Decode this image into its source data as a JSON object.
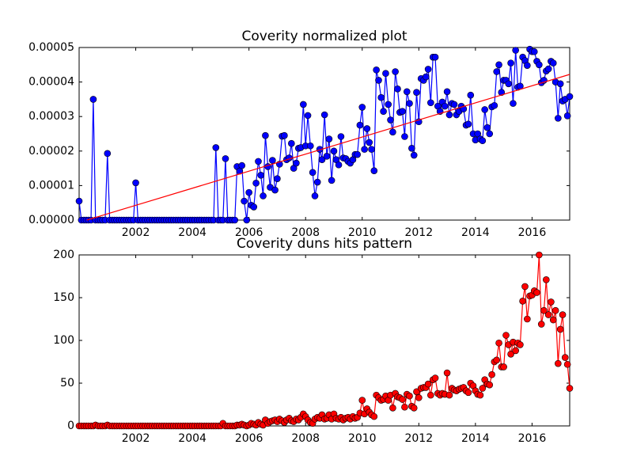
{
  "chart_data": [
    {
      "type": "line",
      "title": "Coverity normalized plot",
      "xlim": [
        2000,
        2017.33
      ],
      "xticks": [
        2002,
        2004,
        2006,
        2008,
        2010,
        2012,
        2014,
        2016
      ],
      "ylim": [
        0,
        5e-05
      ],
      "yticks": [
        {
          "value": 0,
          "label": "0.00000"
        },
        {
          "value": 1e-05,
          "label": "0.00001"
        },
        {
          "value": 2e-05,
          "label": "0.00002"
        },
        {
          "value": 3e-05,
          "label": "0.00003"
        },
        {
          "value": 4e-05,
          "label": "0.00004"
        },
        {
          "value": 5e-05,
          "label": "0.00005"
        }
      ],
      "series": [
        {
          "color": "#0000ff",
          "marker": true,
          "x": [
            2000,
            2000.08,
            2000.17,
            2000.25,
            2000.33,
            2000.42,
            2000.5,
            2000.58,
            2000.67,
            2000.75,
            2000.83,
            2000.92,
            2001,
            2001.08,
            2001.17,
            2001.25,
            2001.33,
            2001.42,
            2001.5,
            2001.58,
            2001.67,
            2001.75,
            2001.83,
            2001.92,
            2002,
            2002.08,
            2002.17,
            2002.25,
            2002.33,
            2002.42,
            2002.5,
            2002.58,
            2002.67,
            2002.75,
            2002.83,
            2002.92,
            2003,
            2003.08,
            2003.17,
            2003.25,
            2003.33,
            2003.42,
            2003.5,
            2003.58,
            2003.67,
            2003.75,
            2003.83,
            2003.92,
            2004,
            2004.08,
            2004.17,
            2004.25,
            2004.33,
            2004.42,
            2004.5,
            2004.58,
            2004.67,
            2004.75,
            2004.83,
            2004.92,
            2005,
            2005.08,
            2005.17,
            2005.25,
            2005.33,
            2005.42,
            2005.5,
            2005.58,
            2005.67,
            2005.75,
            2005.83,
            2005.92,
            2006,
            2006.08,
            2006.17,
            2006.25,
            2006.33,
            2006.42,
            2006.5,
            2006.58,
            2006.67,
            2006.75,
            2006.83,
            2006.92,
            2007,
            2007.08,
            2007.17,
            2007.25,
            2007.33,
            2007.42,
            2007.5,
            2007.58,
            2007.67,
            2007.75,
            2007.83,
            2007.92,
            2008,
            2008.08,
            2008.17,
            2008.25,
            2008.33,
            2008.42,
            2008.5,
            2008.58,
            2008.67,
            2008.75,
            2008.83,
            2008.92,
            2009,
            2009.08,
            2009.17,
            2009.25,
            2009.33,
            2009.42,
            2009.5,
            2009.58,
            2009.67,
            2009.75,
            2009.83,
            2009.92,
            2010,
            2010.08,
            2010.17,
            2010.25,
            2010.33,
            2010.42,
            2010.5,
            2010.58,
            2010.67,
            2010.75,
            2010.83,
            2010.92,
            2011,
            2011.08,
            2011.17,
            2011.25,
            2011.33,
            2011.42,
            2011.5,
            2011.58,
            2011.67,
            2011.75,
            2011.83,
            2011.92,
            2012,
            2012.08,
            2012.17,
            2012.25,
            2012.33,
            2012.42,
            2012.5,
            2012.58,
            2012.67,
            2012.75,
            2012.83,
            2012.92,
            2013,
            2013.08,
            2013.17,
            2013.25,
            2013.33,
            2013.42,
            2013.5,
            2013.58,
            2013.67,
            2013.75,
            2013.83,
            2013.92,
            2014,
            2014.08,
            2014.17,
            2014.25,
            2014.33,
            2014.42,
            2014.5,
            2014.58,
            2014.67,
            2014.75,
            2014.83,
            2014.92,
            2015,
            2015.08,
            2015.17,
            2015.25,
            2015.33,
            2015.42,
            2015.5,
            2015.58,
            2015.67,
            2015.75,
            2015.83,
            2015.92,
            2016,
            2016.08,
            2016.17,
            2016.25,
            2016.33,
            2016.42,
            2016.5,
            2016.58,
            2016.67,
            2016.75,
            2016.83,
            2016.92,
            2017,
            2017.08,
            2017.17,
            2017.25,
            2017.33
          ],
          "values": [
            5.5e-06,
            0,
            0,
            0,
            0,
            0,
            3.5e-05,
            0,
            0,
            0,
            0,
            0,
            1.93e-05,
            0,
            0,
            0,
            0,
            0,
            0,
            0,
            0,
            0,
            0,
            0,
            1.08e-05,
            0,
            0,
            0,
            0,
            0,
            0,
            0,
            0,
            0,
            0,
            0,
            0,
            0,
            0,
            0,
            0,
            0,
            0,
            0,
            0,
            0,
            0,
            0,
            0,
            0,
            0,
            0,
            0,
            0,
            0,
            0,
            0,
            0,
            2.1e-05,
            0,
            0,
            0,
            1.78e-05,
            0,
            0,
            0,
            0,
            1.55e-05,
            1.42e-05,
            1.58e-05,
            5.5e-06,
            0,
            8e-06,
            4.3e-06,
            3.8e-06,
            1.07e-05,
            1.7e-05,
            1.3e-05,
            7e-06,
            2.45e-05,
            1.55e-05,
            9.5e-06,
            1.73e-05,
            8.7e-06,
            1.2e-05,
            1.62e-05,
            2.43e-05,
            2.45e-05,
            1.75e-05,
            1.8e-05,
            2.22e-05,
            1.5e-05,
            1.65e-05,
            2.08e-05,
            2.1e-05,
            3.35e-05,
            2.15e-05,
            3.03e-05,
            2.15e-05,
            1.38e-05,
            7e-06,
            1.1e-05,
            2.05e-05,
            1.75e-05,
            3.05e-05,
            1.85e-05,
            2.35e-05,
            1.15e-05,
            2e-05,
            1.75e-05,
            1.6e-05,
            2.42e-05,
            1.8e-05,
            1.78e-05,
            1.7e-05,
            1.65e-05,
            1.75e-05,
            1.9e-05,
            1.9e-05,
            2.75e-05,
            3.27e-05,
            2.05e-05,
            2.65e-05,
            2.25e-05,
            2.05e-05,
            1.43e-05,
            4.35e-05,
            4.05e-05,
            3.55e-05,
            3.15e-05,
            4.25e-05,
            3.35e-05,
            2.9e-05,
            2.55e-05,
            4.3e-05,
            3.8e-05,
            3.12e-05,
            3.15e-05,
            2.42e-05,
            3.72e-05,
            3.38e-05,
            2.08e-05,
            1.88e-05,
            3.7e-05,
            2.85e-05,
            4.1e-05,
            4.05e-05,
            4.15e-05,
            4.37e-05,
            3.4e-05,
            4.72e-05,
            4.72e-05,
            3.3e-05,
            3.15e-05,
            3.42e-05,
            3.3e-05,
            3.72e-05,
            3.05e-05,
            3.38e-05,
            3.35e-05,
            3.05e-05,
            3.15e-05,
            3.3e-05,
            3.22e-05,
            2.75e-05,
            2.78e-05,
            3.62e-05,
            2.5e-05,
            2.32e-05,
            2.5e-05,
            2.35e-05,
            2.3e-05,
            3.2e-05,
            2.68e-05,
            2.5e-05,
            3.28e-05,
            3.32e-05,
            4.3e-05,
            4.5e-05,
            3.7e-05,
            4.05e-05,
            4.05e-05,
            3.95e-05,
            4.55e-05,
            3.38e-05,
            4.92e-05,
            3.85e-05,
            3.88e-05,
            4.72e-05,
            4.62e-05,
            4.48e-05,
            4.95e-05,
            4.88e-05,
            4.88e-05,
            4.6e-05,
            4.5e-05,
            3.98e-05,
            4.05e-05,
            4.32e-05,
            4.38e-05,
            4.6e-05,
            4.55e-05,
            4e-05,
            2.95e-05,
            3.95e-05,
            3.45e-05,
            3.5e-05,
            3.02e-05,
            3.58e-05
          ]
        },
        {
          "color": "#ff0000",
          "marker": false,
          "x": [
            2000.27,
            2017.33
          ],
          "values": [
            0,
            4.22e-05
          ]
        }
      ]
    },
    {
      "type": "line",
      "title": "Coverity duns hits pattern",
      "xlim": [
        2000,
        2017.33
      ],
      "xticks": [
        2002,
        2004,
        2006,
        2008,
        2010,
        2012,
        2014,
        2016
      ],
      "ylim": [
        0,
        200
      ],
      "yticks": [
        0,
        50,
        100,
        150,
        200
      ],
      "series": [
        {
          "color": "#ff0000",
          "marker": true,
          "x": [
            2000,
            2000.08,
            2000.17,
            2000.25,
            2000.33,
            2000.42,
            2000.5,
            2000.58,
            2000.67,
            2000.75,
            2000.83,
            2000.92,
            2001,
            2001.08,
            2001.17,
            2001.25,
            2001.33,
            2001.42,
            2001.5,
            2001.58,
            2001.67,
            2001.75,
            2001.83,
            2001.92,
            2002,
            2002.08,
            2002.17,
            2002.25,
            2002.33,
            2002.42,
            2002.5,
            2002.58,
            2002.67,
            2002.75,
            2002.83,
            2002.92,
            2003,
            2003.08,
            2003.17,
            2003.25,
            2003.33,
            2003.42,
            2003.5,
            2003.58,
            2003.67,
            2003.75,
            2003.83,
            2003.92,
            2004,
            2004.08,
            2004.17,
            2004.25,
            2004.33,
            2004.42,
            2004.5,
            2004.58,
            2004.67,
            2004.75,
            2004.83,
            2004.92,
            2005,
            2005.08,
            2005.17,
            2005.25,
            2005.33,
            2005.42,
            2005.5,
            2005.58,
            2005.67,
            2005.75,
            2005.83,
            2005.92,
            2006,
            2006.08,
            2006.17,
            2006.25,
            2006.33,
            2006.42,
            2006.5,
            2006.58,
            2006.67,
            2006.75,
            2006.83,
            2006.92,
            2007,
            2007.08,
            2007.17,
            2007.25,
            2007.33,
            2007.42,
            2007.5,
            2007.58,
            2007.67,
            2007.75,
            2007.83,
            2007.92,
            2008,
            2008.08,
            2008.17,
            2008.25,
            2008.33,
            2008.42,
            2008.5,
            2008.58,
            2008.67,
            2008.75,
            2008.83,
            2008.92,
            2009,
            2009.08,
            2009.17,
            2009.25,
            2009.33,
            2009.42,
            2009.5,
            2009.58,
            2009.67,
            2009.75,
            2009.83,
            2009.92,
            2010,
            2010.08,
            2010.17,
            2010.25,
            2010.33,
            2010.42,
            2010.5,
            2010.58,
            2010.67,
            2010.75,
            2010.83,
            2010.92,
            2011,
            2011.08,
            2011.17,
            2011.25,
            2011.33,
            2011.42,
            2011.5,
            2011.58,
            2011.67,
            2011.75,
            2011.83,
            2011.92,
            2012,
            2012.08,
            2012.17,
            2012.25,
            2012.33,
            2012.42,
            2012.5,
            2012.58,
            2012.67,
            2012.75,
            2012.83,
            2012.92,
            2013,
            2013.08,
            2013.17,
            2013.25,
            2013.33,
            2013.42,
            2013.5,
            2013.58,
            2013.67,
            2013.75,
            2013.83,
            2013.92,
            2014,
            2014.08,
            2014.17,
            2014.25,
            2014.33,
            2014.42,
            2014.5,
            2014.58,
            2014.67,
            2014.75,
            2014.83,
            2014.92,
            2015,
            2015.08,
            2015.17,
            2015.25,
            2015.33,
            2015.42,
            2015.5,
            2015.58,
            2015.67,
            2015.75,
            2015.83,
            2015.92,
            2016,
            2016.08,
            2016.17,
            2016.25,
            2016.33,
            2016.42,
            2016.5,
            2016.58,
            2016.67,
            2016.75,
            2016.83,
            2016.92,
            2017,
            2017.08,
            2017.17,
            2017.25,
            2017.33
          ],
          "values": [
            0,
            0,
            0,
            0,
            0,
            0,
            0,
            1,
            0,
            0,
            0,
            0,
            1,
            0,
            0,
            0,
            0,
            0,
            0,
            0,
            0,
            0,
            0,
            0,
            0,
            0,
            0,
            0,
            0,
            0,
            0,
            0,
            0,
            0,
            0,
            0,
            0,
            0,
            0,
            0,
            0,
            0,
            0,
            0,
            0,
            0,
            0,
            0,
            0,
            0,
            0,
            0,
            0,
            0,
            0,
            0,
            0,
            0,
            0,
            0,
            0,
            3,
            0,
            0,
            0,
            0,
            0,
            1,
            1,
            2,
            1,
            0,
            1,
            3,
            2,
            1,
            4,
            2,
            1,
            7,
            3,
            5,
            6,
            7,
            5,
            8,
            6,
            4,
            7,
            9,
            6,
            5,
            8,
            7,
            10,
            14,
            11,
            7,
            4,
            3,
            8,
            10,
            9,
            13,
            8,
            9,
            13,
            8,
            14,
            9,
            8,
            10,
            7,
            9,
            10,
            8,
            11,
            9,
            10,
            15,
            30,
            14,
            20,
            16,
            13,
            11,
            36,
            33,
            30,
            31,
            35,
            30,
            36,
            21,
            38,
            34,
            33,
            31,
            22,
            37,
            35,
            23,
            21,
            40,
            33,
            44,
            45,
            45,
            49,
            36,
            54,
            56,
            38,
            36,
            38,
            37,
            62,
            36,
            44,
            42,
            41,
            43,
            44,
            45,
            41,
            39,
            50,
            47,
            41,
            37,
            36,
            44,
            54,
            49,
            48,
            60,
            75,
            77,
            97,
            69,
            69,
            106,
            95,
            84,
            98,
            88,
            97,
            95,
            146,
            163,
            125,
            152,
            153,
            158,
            156,
            200,
            119,
            135,
            171,
            130,
            145,
            124,
            135,
            73,
            113,
            130,
            80,
            72,
            44
          ]
        }
      ]
    }
  ]
}
